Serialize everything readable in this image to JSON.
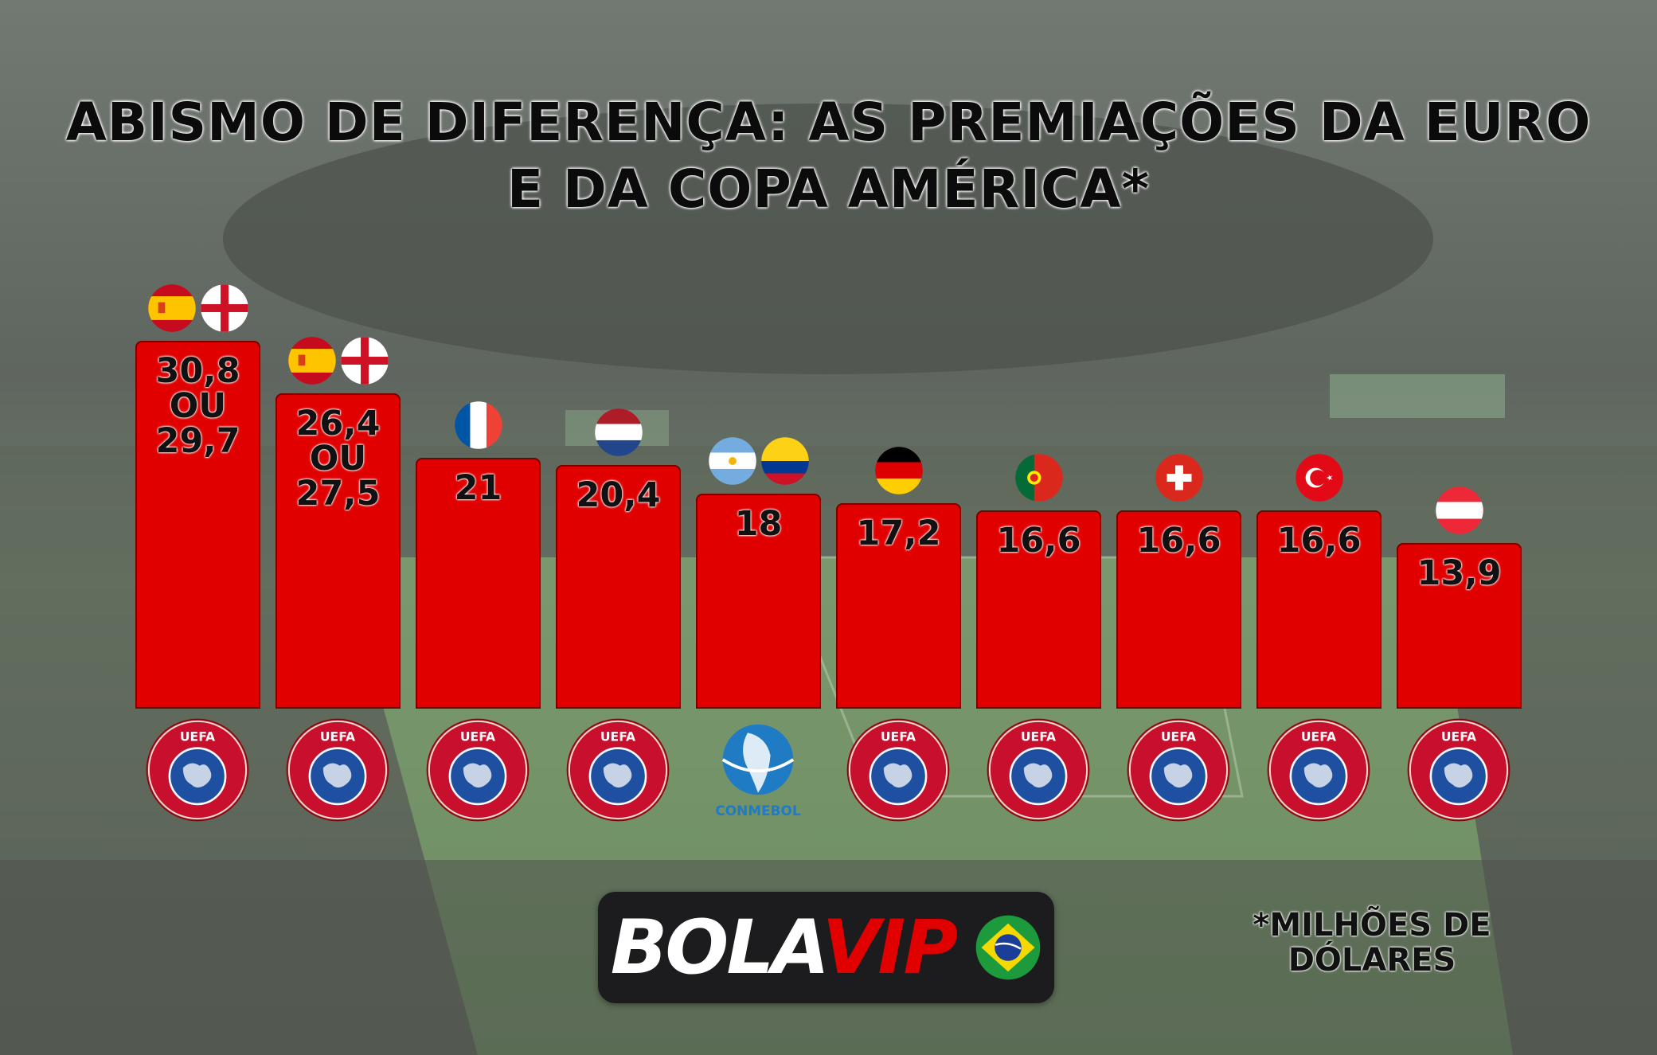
{
  "title_lines": [
    "ABISMO DE DIFERENÇA: AS PREMIAÇÕES DA EURO",
    "E DA COPA AMÉRICA*"
  ],
  "footnote_lines": [
    "*MILHÕES DE",
    "DÓLARES"
  ],
  "brand": {
    "text_left": "BOLA",
    "text_right": "VIP",
    "flag_icon": "brazil-flag-icon"
  },
  "colors": {
    "bar": "#e00000",
    "accent_vip": "#e00000"
  },
  "chart_data": {
    "type": "bar",
    "title": "ABISMO DE DIFERENÇA: AS PREMIAÇÕES DA EURO E DA COPA AMÉRICA*",
    "ylabel": "",
    "xlabel": "",
    "unit": "*MILHÕES DE DÓLARES",
    "ylim": [
      0,
      30.8
    ],
    "grid": false,
    "bars": [
      {
        "value": 30.8,
        "label": "30,8\nOU\n29,7",
        "flags": [
          "spain-flag-icon",
          "england-flag-icon"
        ],
        "logo": "uefa-logo-icon"
      },
      {
        "value": 26.4,
        "label": "26,4\nOU\n27,5",
        "flags": [
          "spain-flag-icon",
          "england-flag-icon"
        ],
        "logo": "uefa-logo-icon"
      },
      {
        "value": 21,
        "label": "21",
        "flags": [
          "france-flag-icon"
        ],
        "logo": "uefa-logo-icon"
      },
      {
        "value": 20.4,
        "label": "20,4",
        "flags": [
          "netherlands-flag-icon"
        ],
        "logo": "uefa-logo-icon"
      },
      {
        "value": 18,
        "label": "18",
        "flags": [
          "argentina-flag-icon",
          "colombia-flag-icon"
        ],
        "logo": "conmebol-logo-icon",
        "logo_text": "CONMEBOL"
      },
      {
        "value": 17.2,
        "label": "17,2",
        "flags": [
          "germany-flag-icon"
        ],
        "logo": "uefa-logo-icon"
      },
      {
        "value": 16.6,
        "label": "16,6",
        "flags": [
          "portugal-flag-icon"
        ],
        "logo": "uefa-logo-icon"
      },
      {
        "value": 16.6,
        "label": "16,6",
        "flags": [
          "switzerland-flag-icon"
        ],
        "logo": "uefa-logo-icon"
      },
      {
        "value": 16.6,
        "label": "16,6",
        "flags": [
          "turkey-flag-icon"
        ],
        "logo": "uefa-logo-icon"
      },
      {
        "value": 13.9,
        "label": "13,9",
        "flags": [
          "austria-flag-icon"
        ],
        "logo": "uefa-logo-icon"
      }
    ]
  }
}
